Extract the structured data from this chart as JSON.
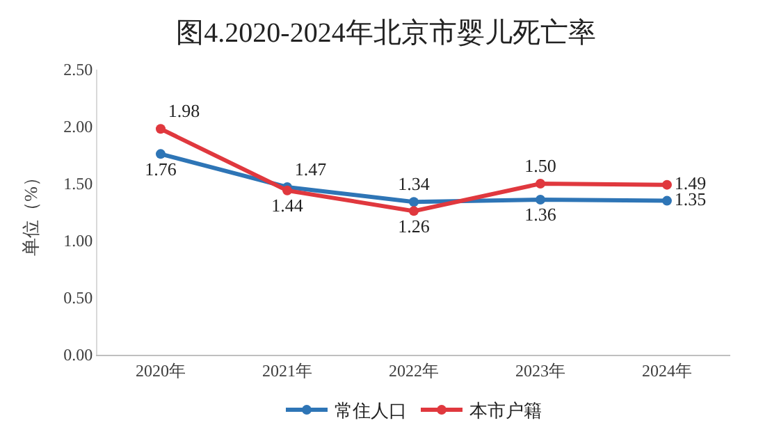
{
  "chart_data": {
    "type": "line",
    "title": "图4.2020-2024年北京市婴儿死亡率",
    "ylabel": "单位（%）",
    "categories": [
      "2020年",
      "2021年",
      "2022年",
      "2023年",
      "2024年"
    ],
    "series": [
      {
        "name": "常住人口",
        "color": "#2e75b6",
        "values": [
          1.76,
          1.47,
          1.34,
          1.36,
          1.35
        ],
        "value_labels": [
          "1.76",
          "1.47",
          "1.34",
          "1.36",
          "1.35"
        ]
      },
      {
        "name": "本市户籍",
        "color": "#e0383e",
        "values": [
          1.98,
          1.44,
          1.26,
          1.5,
          1.49
        ],
        "value_labels": [
          "1.98",
          "1.44",
          "1.26",
          "1.50",
          "1.49"
        ]
      }
    ],
    "ylim": [
      0,
      2.5
    ],
    "yticks": [
      "0.00",
      "0.50",
      "1.00",
      "1.50",
      "2.00",
      "2.50"
    ],
    "legend": "bottom",
    "marker": "circle",
    "line_style": "solid"
  }
}
